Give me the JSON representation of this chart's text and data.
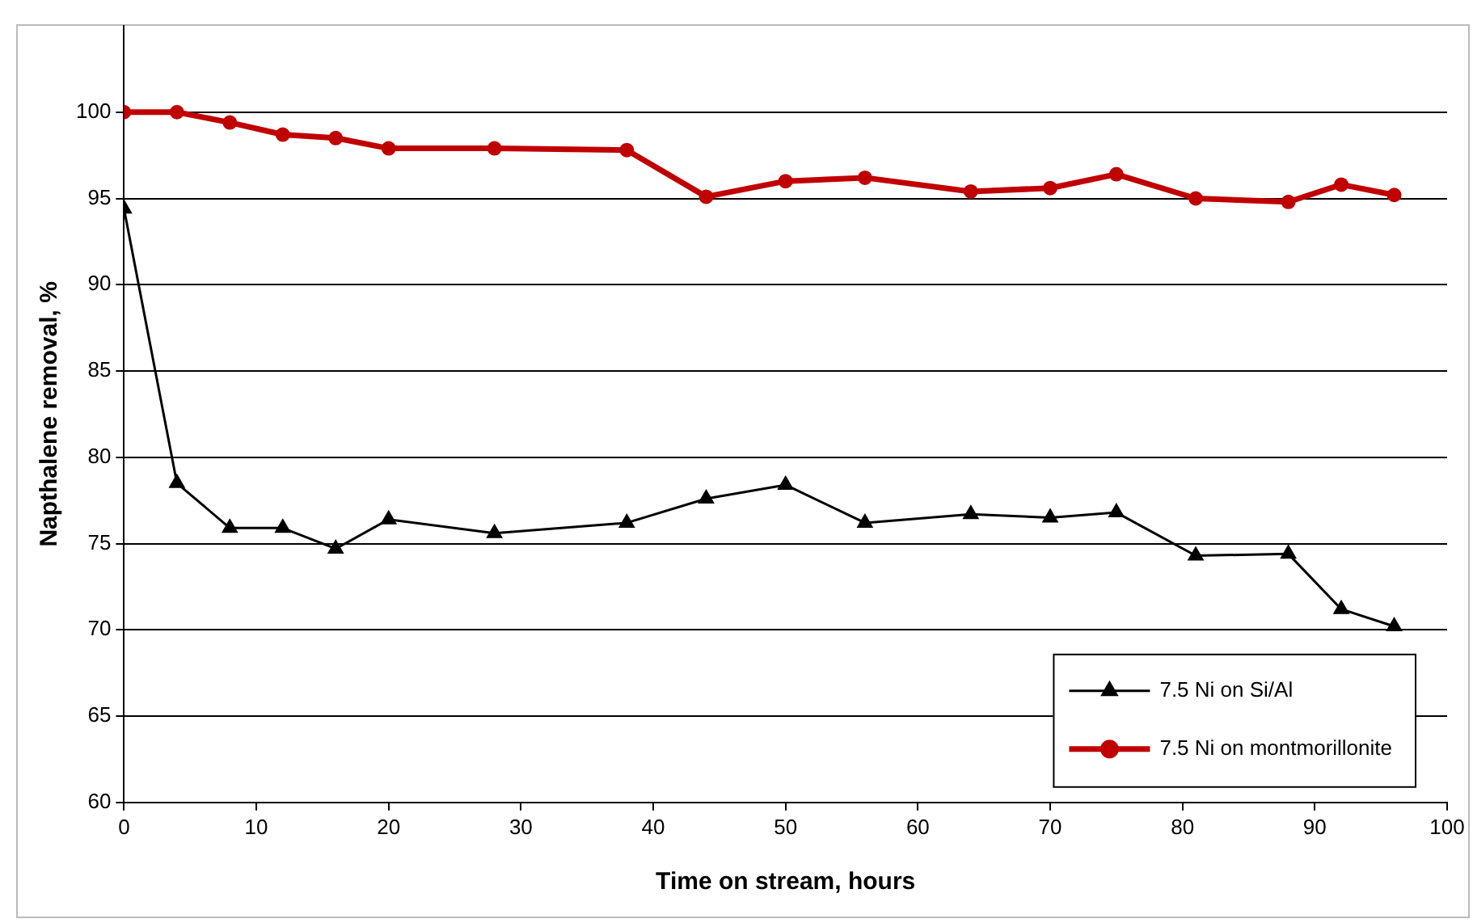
{
  "chart_data": {
    "type": "line",
    "xlabel": "Time on stream, hours",
    "ylabel": "Napthalene removal, %",
    "xlim": [
      0,
      100
    ],
    "xticks": [
      0,
      10,
      20,
      30,
      40,
      50,
      60,
      70,
      80,
      90,
      100
    ],
    "ylim": [
      60,
      105
    ],
    "yticks": [
      60,
      65,
      70,
      75,
      80,
      85,
      90,
      95,
      100
    ],
    "grid": "y",
    "legend": "bottom right",
    "series": [
      {
        "name": "7.5 Ni on Si/Al",
        "color": "#000000",
        "marker": "triangle",
        "x": [
          0,
          4,
          8,
          12,
          16,
          20,
          28,
          38,
          44,
          50,
          56,
          64,
          70,
          75,
          81,
          88,
          92,
          96
        ],
        "values": [
          94.4,
          78.5,
          75.9,
          75.9,
          74.7,
          76.4,
          75.6,
          76.2,
          77.6,
          78.4,
          76.2,
          76.7,
          76.5,
          76.8,
          74.3,
          74.4,
          71.2,
          70.2
        ]
      },
      {
        "name": "7.5 Ni on montmorillonite",
        "color": "#c00000",
        "marker": "circle",
        "x": [
          0,
          4,
          8,
          12,
          16,
          20,
          28,
          38,
          44,
          50,
          56,
          64,
          70,
          75,
          81,
          88,
          92,
          96
        ],
        "values": [
          100,
          100,
          99.4,
          98.7,
          98.5,
          97.9,
          97.9,
          97.8,
          95.1,
          96.0,
          96.2,
          95.4,
          95.6,
          96.4,
          95.0,
          94.8,
          95.8,
          95.2
        ]
      }
    ]
  }
}
